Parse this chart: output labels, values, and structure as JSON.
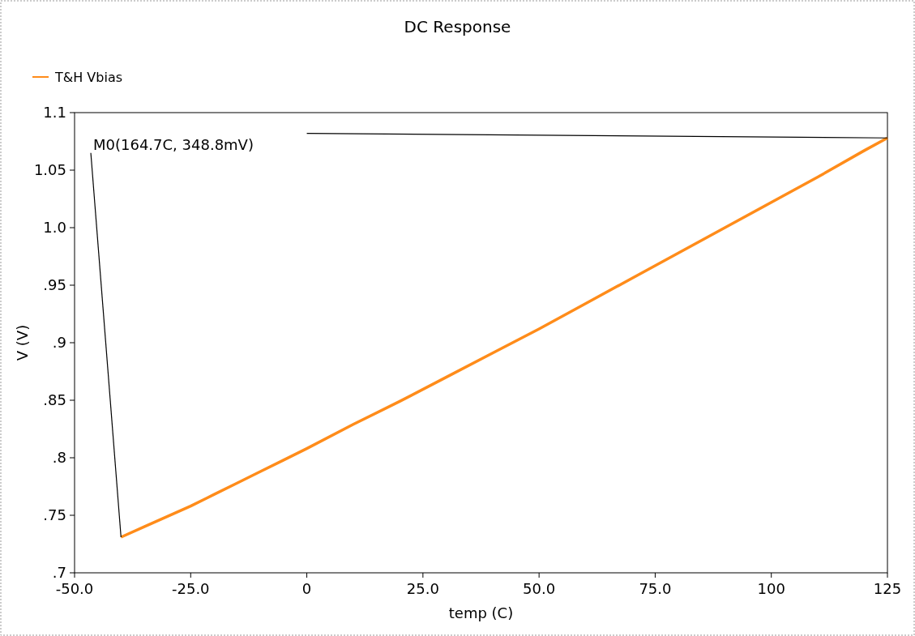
{
  "chart_data": {
    "type": "line",
    "title": "DC Response",
    "xlabel": "temp (C)",
    "ylabel": "V (V)",
    "x": [
      -40,
      -35,
      -30,
      -25,
      -20,
      -15,
      -10,
      -5,
      0,
      10,
      20,
      30,
      40,
      50,
      60,
      70,
      80,
      90,
      100,
      110,
      120,
      125
    ],
    "series": [
      {
        "name": "T&H Vbias",
        "color": "#ff8c1a",
        "values": [
          0.731,
          0.74,
          0.749,
          0.758,
          0.768,
          0.778,
          0.788,
          0.798,
          0.808,
          0.829,
          0.849,
          0.87,
          0.891,
          0.912,
          0.934,
          0.956,
          0.978,
          1.0,
          1.022,
          1.044,
          1.067,
          1.078
        ]
      },
      {
        "color": "#000000",
        "x": [
          -46.5,
          -40
        ],
        "values": [
          1.065,
          0.731
        ]
      },
      {
        "color": "#000000",
        "x": [
          0,
          125
        ],
        "values": [
          1.082,
          1.078
        ]
      }
    ],
    "xlim": [
      -50,
      125
    ],
    "ylim": [
      0.7,
      1.1
    ],
    "xticks": [
      {
        "value": -50,
        "label": "-50.0"
      },
      {
        "value": -25,
        "label": "-25.0"
      },
      0,
      {
        "value": 25,
        "label": "25.0"
      },
      {
        "value": 50,
        "label": "50.0"
      },
      {
        "value": 75,
        "label": "75.0"
      },
      100,
      125
    ],
    "yticks": [
      {
        "value": 0.7,
        "label": ".7"
      },
      {
        "value": 0.75,
        "label": ".75"
      },
      {
        "value": 0.8,
        "label": ".8"
      },
      {
        "value": 0.85,
        "label": ".85"
      },
      {
        "value": 0.9,
        "label": ".9"
      },
      {
        "value": 0.95,
        "label": ".95"
      },
      {
        "value": 1.0,
        "label": "1.0"
      },
      1.05,
      1.1
    ],
    "annotations": [
      "M0(164.7C, 348.8mV)"
    ],
    "legend": "top left",
    "grid": false,
    "marker": "none",
    "line_style": "solid"
  }
}
